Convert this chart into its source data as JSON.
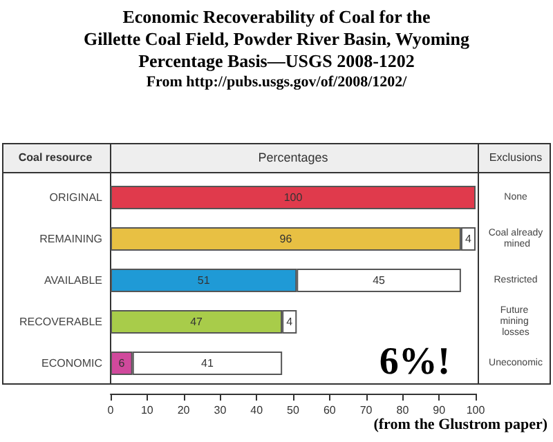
{
  "chart_data": {
    "type": "bar",
    "orientation": "horizontal",
    "stacked": true,
    "data_labels": true,
    "title": "Economic Recoverability of Coal for the\nGillette Coal Field, Powder River Basin, Wyoming\nPercentage Basis—USGS 2008-1202",
    "subtitle": "From http://pubs.usgs.gov/of/2008/1202/",
    "ylabel": "Coal resource",
    "xlabel": "Percentages",
    "y2label": "Exclusions",
    "categories": [
      "ORIGINAL",
      "REMAINING",
      "AVAILABLE",
      "RECOVERABLE",
      "ECONOMIC"
    ],
    "series": [
      {
        "colors": [
          "#e03a4c",
          "#e8c043",
          "#1f9ad6",
          "#a8cc4a",
          "#d0499c"
        ],
        "values": [
          100,
          96,
          51,
          47,
          6
        ]
      },
      {
        "color": "#ffffff",
        "values": [
          null,
          4,
          45,
          4,
          41
        ]
      }
    ],
    "xlim": [
      0,
      100
    ],
    "xticks": [
      0,
      10,
      20,
      30,
      40,
      50,
      60,
      70,
      80,
      90,
      100
    ],
    "annotations": [
      "None",
      "Coal already mined",
      "Restricted",
      "Future mining losses",
      "Uneconomic",
      "6%!",
      "(from the Glustrom paper)"
    ]
  }
}
